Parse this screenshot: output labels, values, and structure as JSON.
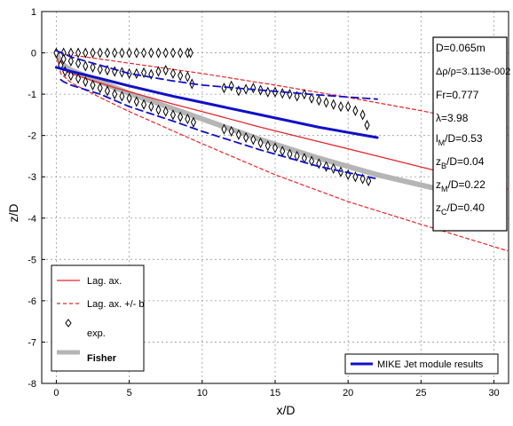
{
  "chart_data": {
    "type": "line",
    "xlabel": "x/D",
    "ylabel": "z/D",
    "xlim": [
      -1,
      31
    ],
    "ylim": [
      -8,
      1
    ],
    "xticks": [
      0,
      5,
      10,
      15,
      20,
      25,
      30
    ],
    "yticks": [
      1,
      0,
      -1,
      -2,
      -3,
      -4,
      -5,
      -6,
      -7,
      -8
    ],
    "grid": true,
    "colors": {
      "lag": "#e8262a",
      "lag_band": "#e8262a",
      "exp": "#000000",
      "fisher": "#b5b5b5",
      "mike": "#1010c8",
      "mike_band": "#1010c8"
    },
    "legend_bottom_left": {
      "placement": "bottom-left",
      "entries": [
        {
          "label": "Lag. ax.",
          "style": "solid-red"
        },
        {
          "label": "Lag. ax. +/- b",
          "style": "dashed-red"
        },
        {
          "label": "exp.",
          "style": "diamond-black"
        },
        {
          "label": "Fisher",
          "style": "thick-gray"
        }
      ]
    },
    "legend_bottom_right": {
      "placement": "bottom-right",
      "entries": [
        {
          "label": "MIKE Jet module results",
          "style": "solid-blue"
        }
      ]
    },
    "parameters": [
      {
        "text": "D=0.065m"
      },
      {
        "text": "Δρ/ρ=3.113e-002"
      },
      {
        "text": "Fr=0.777"
      },
      {
        "text": "λ=3.98"
      },
      {
        "main": "l",
        "sub": "M",
        "rest": "/D=0.53"
      },
      {
        "main": "z",
        "sub": "B",
        "rest": "/D=0.04"
      },
      {
        "main": "z",
        "sub": "M",
        "rest": "/D=0.22"
      },
      {
        "main": "z",
        "sub": "C",
        "rest": "/D=0.40"
      }
    ],
    "series": [
      {
        "name": "Lag. ax.",
        "kind": "line",
        "x": [
          0,
          0.1,
          0.3,
          0.6,
          1,
          2,
          4,
          6,
          8,
          10,
          14,
          18,
          22,
          26,
          31
        ],
        "y": [
          0,
          -0.2,
          -0.35,
          -0.45,
          -0.5,
          -0.62,
          -0.84,
          -1.04,
          -1.24,
          -1.42,
          -1.8,
          -2.15,
          -2.5,
          -2.85,
          -3.3
        ]
      },
      {
        "name": "Lag. ax. +/- b (upper)",
        "kind": "dashed",
        "x": [
          0,
          2,
          5,
          10,
          15,
          20,
          25,
          31
        ],
        "y": [
          0,
          -0.1,
          -0.25,
          -0.5,
          -0.78,
          -1.08,
          -1.4,
          -1.82
        ]
      },
      {
        "name": "Lag. ax. +/- b (lower)",
        "kind": "dashed",
        "x": [
          0,
          0.3,
          1,
          3,
          5,
          10,
          15,
          20,
          25,
          31
        ],
        "y": [
          0,
          -0.5,
          -0.72,
          -1.08,
          -1.42,
          -2.2,
          -2.95,
          -3.6,
          -4.15,
          -4.8
        ]
      },
      {
        "name": "Fisher",
        "kind": "thick",
        "x": [
          0,
          0.3,
          1,
          3,
          5,
          8,
          10,
          14,
          18,
          22,
          25,
          26
        ],
        "y": [
          0,
          -0.25,
          -0.42,
          -0.7,
          -0.98,
          -1.35,
          -1.6,
          -2.1,
          -2.55,
          -2.95,
          -3.2,
          -3.28
        ]
      },
      {
        "name": "MIKE Jet module results",
        "kind": "line",
        "x": [
          0,
          0.3,
          1,
          3,
          5,
          8,
          10,
          14,
          18,
          22
        ],
        "y": [
          -0.35,
          -0.38,
          -0.45,
          -0.62,
          -0.8,
          -1.05,
          -1.2,
          -1.5,
          -1.8,
          -2.05
        ]
      },
      {
        "name": "MIKE band (upper)",
        "kind": "dashed",
        "x": [
          0,
          0.4,
          1,
          3,
          5,
          8,
          10,
          14,
          18,
          22
        ],
        "y": [
          0.05,
          0,
          -0.1,
          -0.3,
          -0.5,
          -0.68,
          -0.78,
          -0.9,
          -1.02,
          -1.12
        ]
      },
      {
        "name": "MIKE band (lower)",
        "kind": "dashed",
        "x": [
          0.3,
          0.5,
          1,
          3,
          5,
          8,
          10,
          14,
          18,
          22
        ],
        "y": [
          -0.65,
          -0.7,
          -0.78,
          -1.0,
          -1.3,
          -1.65,
          -1.9,
          -2.35,
          -2.75,
          -3.05
        ]
      },
      {
        "name": "exp. (top)",
        "kind": "diamonds",
        "x": [
          0,
          0.5,
          1,
          1.5,
          2,
          2.5,
          3,
          3.5,
          4,
          4.5,
          5,
          5.5,
          6,
          6.5,
          7,
          7.5,
          8,
          8.5,
          9,
          9.2
        ],
        "y": [
          0,
          0,
          0,
          0,
          0,
          0,
          0,
          0,
          0,
          0,
          0,
          0,
          0,
          0,
          0,
          0,
          0,
          0,
          0,
          0
        ]
      },
      {
        "name": "exp. (upper)",
        "kind": "diamonds",
        "x": [
          0.5,
          1,
          1.5,
          2,
          2.5,
          3,
          3.5,
          4,
          4.5,
          5,
          5.5,
          6,
          6.5,
          7,
          7.5,
          8,
          8.5,
          9,
          9.3,
          11.5,
          12,
          12.5,
          13,
          13.5,
          14,
          14.5,
          15,
          15.5,
          16,
          16.5,
          17,
          17.5,
          18,
          18.5,
          19,
          19.5,
          20,
          20.5,
          21,
          21.3
        ],
        "y": [
          -0.15,
          -0.2,
          -0.25,
          -0.32,
          -0.35,
          -0.4,
          -0.42,
          -0.45,
          -0.47,
          -0.5,
          -0.5,
          -0.48,
          -0.52,
          -0.45,
          -0.42,
          -0.5,
          -0.55,
          -0.58,
          -0.75,
          -0.85,
          -0.8,
          -0.92,
          -0.88,
          -0.85,
          -0.9,
          -0.95,
          -0.95,
          -0.98,
          -1.0,
          -1.05,
          -1.0,
          -1.1,
          -1.15,
          -1.2,
          -1.25,
          -1.3,
          -1.3,
          -1.4,
          -1.5,
          -1.75
        ]
      },
      {
        "name": "exp. (lower)",
        "kind": "diamonds",
        "x": [
          0.3,
          0.6,
          1,
          1.5,
          2,
          2.5,
          3,
          3.5,
          4,
          4.5,
          5,
          5.5,
          6,
          6.5,
          7,
          7.5,
          8,
          8.5,
          9,
          9.4,
          11.5,
          12,
          12.5,
          13,
          13.5,
          14,
          14.5,
          15,
          15.5,
          16,
          16.5,
          17,
          17.5,
          18,
          18.5,
          19,
          19.5,
          20,
          20.5,
          21,
          21.4
        ],
        "y": [
          -0.3,
          -0.45,
          -0.55,
          -0.62,
          -0.7,
          -0.78,
          -0.85,
          -0.92,
          -1.0,
          -1.05,
          -1.1,
          -1.18,
          -1.25,
          -1.3,
          -1.38,
          -1.42,
          -1.5,
          -1.55,
          -1.6,
          -1.68,
          -1.85,
          -1.9,
          -1.98,
          -2.05,
          -2.1,
          -2.18,
          -2.25,
          -2.3,
          -2.38,
          -2.45,
          -2.5,
          -2.55,
          -2.62,
          -2.68,
          -2.75,
          -2.8,
          -2.88,
          -2.95,
          -3.0,
          -3.05,
          -3.1
        ]
      }
    ]
  }
}
